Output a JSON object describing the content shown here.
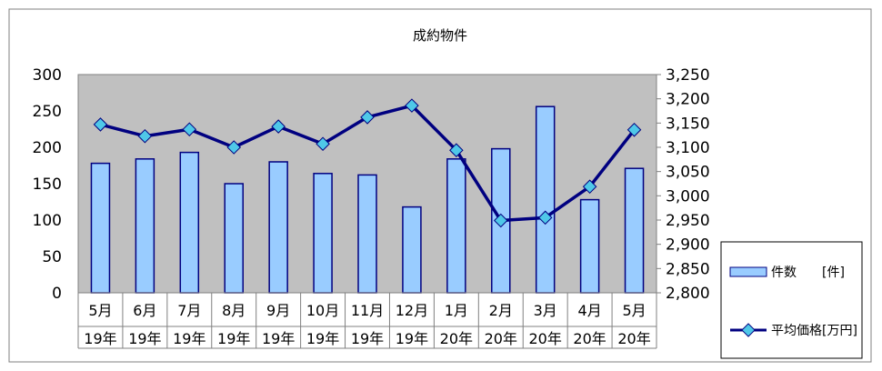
{
  "chart_data": {
    "type": "bar+line",
    "title": "成約物件",
    "categories": [
      {
        "month": "5月",
        "year": "19年"
      },
      {
        "month": "6月",
        "year": "19年"
      },
      {
        "month": "7月",
        "year": "19年"
      },
      {
        "month": "8月",
        "year": "19年"
      },
      {
        "month": "9月",
        "year": "19年"
      },
      {
        "month": "10月",
        "year": "19年"
      },
      {
        "month": "11月",
        "year": "19年"
      },
      {
        "month": "12月",
        "year": "19年"
      },
      {
        "month": "1月",
        "year": "20年"
      },
      {
        "month": "2月",
        "year": "20年"
      },
      {
        "month": "3月",
        "year": "20年"
      },
      {
        "month": "4月",
        "year": "20年"
      },
      {
        "month": "5月",
        "year": "20年"
      }
    ],
    "series": [
      {
        "name": "件数　　[件]",
        "type": "bar",
        "axis": "left",
        "color": "#99ccff",
        "values": [
          178,
          184,
          193,
          150,
          180,
          164,
          162,
          118,
          184,
          198,
          256,
          128,
          171
        ]
      },
      {
        "name": "平均価格[万円]",
        "type": "line",
        "axis": "right",
        "color": "#000080",
        "marker_color": "#4fc8e8",
        "values": [
          3147,
          3123,
          3137,
          3100,
          3143,
          3107,
          3162,
          3186,
          3094,
          2949,
          2955,
          3019,
          3136
        ]
      }
    ],
    "left_axis": {
      "min": 0,
      "max": 300,
      "step": 50,
      "ticks": [
        "0",
        "50",
        "100",
        "150",
        "200",
        "250",
        "300"
      ]
    },
    "right_axis": {
      "min": 2800,
      "max": 3250,
      "step": 50,
      "ticks": [
        "2,800",
        "2,850",
        "2,900",
        "2,950",
        "3,000",
        "3,050",
        "3,100",
        "3,150",
        "3,200",
        "3,250"
      ]
    },
    "plot_background": "#c0c0c0",
    "legend_placement": "bottom-right"
  }
}
